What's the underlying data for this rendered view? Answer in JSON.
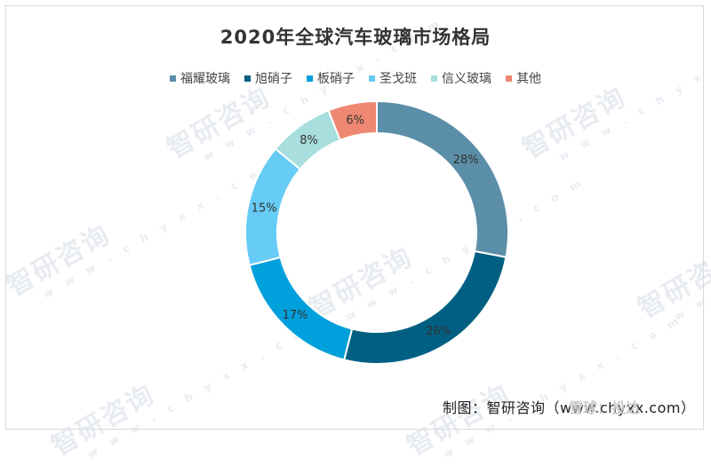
{
  "chart_data": {
    "type": "pie",
    "title": "2020年全球汽车玻璃市场格局",
    "legend_position": "top",
    "labels": [
      "福耀玻璃",
      "旭硝子",
      "板硝子",
      "圣戈班",
      "信义玻璃",
      "其他"
    ],
    "values": [
      28,
      26,
      17,
      15,
      8,
      6
    ],
    "value_labels": [
      "28%",
      "26%",
      "17%",
      "15%",
      "8%",
      "6%"
    ],
    "colors": [
      "#5b8ea8",
      "#005f82",
      "#00a0dc",
      "#66ccf5",
      "#a8dede",
      "#ee8872"
    ]
  },
  "source": "制图：智研咨询（www.chyxx.com）",
  "watermark": {
    "text": "智研咨询",
    "domain": "w w w . c h y x x . c o m"
  },
  "snowball_mark": "雪球：投达"
}
